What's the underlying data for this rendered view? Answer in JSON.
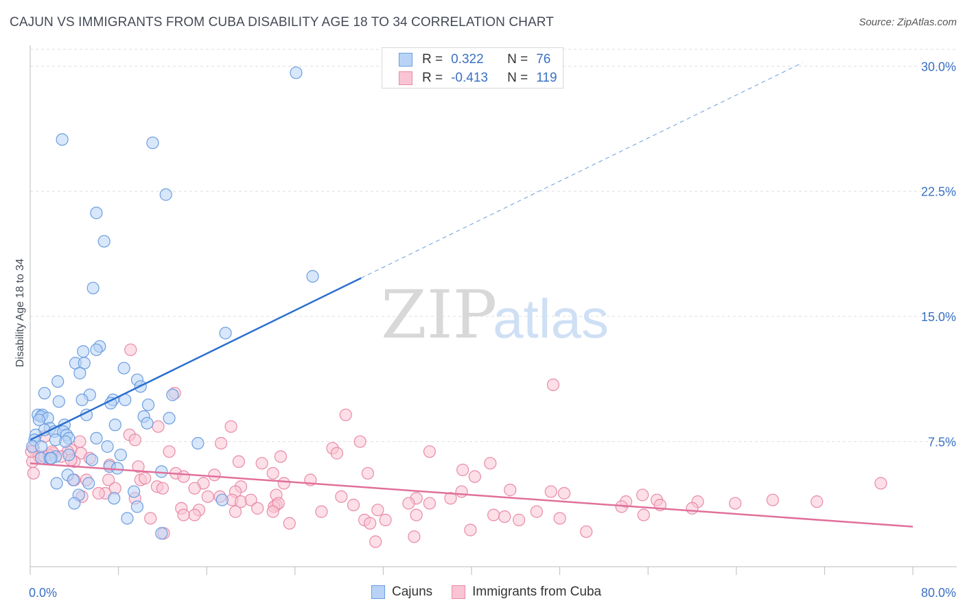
{
  "title": "CAJUN VS IMMIGRANTS FROM CUBA DISABILITY AGE 18 TO 34 CORRELATION CHART",
  "source": "Source: ZipAtlas.com",
  "watermark": {
    "zip": "ZIP",
    "atlas": "atlas"
  },
  "legend": {
    "rows": [
      {
        "r_label": "R =",
        "r_value": "0.322",
        "n_label": "N =",
        "n_value": "76"
      },
      {
        "r_label": "R =",
        "r_value": "-0.413",
        "n_label": "N =",
        "n_value": "119"
      }
    ]
  },
  "bottom_legend": [
    "Cajuns",
    "Immigrants from Cuba"
  ],
  "colors": {
    "blue_fill": "#b8d3f6",
    "blue_stroke": "#6b9de0",
    "blue_line": "#2a6fcf",
    "pink_fill": "#f9c4d4",
    "pink_stroke": "#e88aa8",
    "pink_line": "#e0709a",
    "tick_text": "#3a70c2",
    "grid": "#dddddd"
  },
  "chart_data": {
    "type": "scatter",
    "title": "CAJUN VS IMMIGRANTS FROM CUBA DISABILITY AGE 18 TO 34 CORRELATION CHART",
    "xlabel": "",
    "ylabel": "Disability Age 18 to 34",
    "xlim": [
      0,
      80
    ],
    "ylim": [
      0,
      31
    ],
    "x_tick_labels": [
      "0.0%",
      "80.0%"
    ],
    "y_ticks": [
      7.5,
      15.0,
      22.5,
      30.0
    ],
    "y_tick_labels": [
      "7.5%",
      "15.0%",
      "22.5%",
      "30.0%"
    ],
    "grid": "horizontal dashed",
    "series": [
      {
        "name": "Cajuns",
        "R": 0.322,
        "N": 76,
        "trend": {
          "x0": 0,
          "y0": 7.6,
          "x1": 30,
          "y1": 17.3,
          "dashed_to_x": 70,
          "dashed_to_y": 30.2
        },
        "points": [
          [
            24.1,
            29.6
          ],
          [
            2.9,
            25.6
          ],
          [
            11.1,
            25.4
          ],
          [
            12.3,
            22.3
          ],
          [
            6.0,
            21.2
          ],
          [
            6.7,
            19.5
          ],
          [
            25.6,
            17.4
          ],
          [
            5.7,
            16.7
          ],
          [
            17.7,
            14.0
          ],
          [
            6.3,
            13.2
          ],
          [
            4.8,
            12.9
          ],
          [
            6.0,
            13.0
          ],
          [
            4.1,
            12.2
          ],
          [
            4.9,
            12.2
          ],
          [
            8.5,
            11.9
          ],
          [
            4.5,
            11.6
          ],
          [
            9.7,
            11.2
          ],
          [
            2.5,
            11.1
          ],
          [
            10.0,
            10.8
          ],
          [
            1.3,
            10.4
          ],
          [
            12.9,
            10.3
          ],
          [
            5.4,
            10.3
          ],
          [
            7.5,
            10.0
          ],
          [
            8.6,
            10.0
          ],
          [
            4.7,
            10.0
          ],
          [
            2.6,
            9.9
          ],
          [
            7.3,
            9.8
          ],
          [
            10.7,
            9.7
          ],
          [
            0.7,
            9.1
          ],
          [
            1.1,
            9.1
          ],
          [
            1.0,
            9.0
          ],
          [
            5.1,
            9.1
          ],
          [
            10.3,
            9.0
          ],
          [
            12.6,
            8.9
          ],
          [
            1.6,
            8.9
          ],
          [
            0.8,
            8.8
          ],
          [
            10.6,
            8.6
          ],
          [
            3.1,
            8.5
          ],
          [
            7.7,
            8.5
          ],
          [
            1.8,
            8.3
          ],
          [
            1.3,
            8.2
          ],
          [
            2.2,
            8.1
          ],
          [
            3.0,
            8.1
          ],
          [
            3.3,
            7.9
          ],
          [
            0.5,
            7.9
          ],
          [
            0.4,
            7.6
          ],
          [
            3.5,
            7.7
          ],
          [
            2.3,
            7.6
          ],
          [
            3.2,
            7.5
          ],
          [
            15.2,
            7.4
          ],
          [
            7.0,
            7.2
          ],
          [
            0.2,
            7.2
          ],
          [
            1.0,
            7.2
          ],
          [
            8.2,
            6.7
          ],
          [
            3.5,
            6.7
          ],
          [
            2.3,
            6.6
          ],
          [
            1.0,
            6.5
          ],
          [
            1.8,
            6.5
          ],
          [
            5.6,
            6.4
          ],
          [
            7.2,
            6.0
          ],
          [
            7.9,
            5.9
          ],
          [
            11.9,
            5.7
          ],
          [
            3.4,
            5.5
          ],
          [
            3.9,
            5.2
          ],
          [
            2.4,
            5.0
          ],
          [
            5.3,
            5.0
          ],
          [
            9.4,
            4.5
          ],
          [
            4.4,
            4.3
          ],
          [
            7.6,
            4.1
          ],
          [
            17.4,
            4.0
          ],
          [
            4.0,
            3.8
          ],
          [
            9.7,
            3.6
          ],
          [
            8.8,
            2.9
          ],
          [
            11.9,
            2.0
          ],
          [
            6.0,
            7.7
          ],
          [
            1.9,
            6.5
          ]
        ]
      },
      {
        "name": "Immigrants from Cuba",
        "R": -0.413,
        "N": 119,
        "trend": {
          "x0": 0,
          "y0": 6.2,
          "x1": 80,
          "y1": 2.4
        },
        "points": [
          [
            9.1,
            13.0
          ],
          [
            47.4,
            10.9
          ],
          [
            13.1,
            10.4
          ],
          [
            28.6,
            9.1
          ],
          [
            11.6,
            8.4
          ],
          [
            18.2,
            8.4
          ],
          [
            9.0,
            7.9
          ],
          [
            1.3,
            7.8
          ],
          [
            9.5,
            7.6
          ],
          [
            4.5,
            7.5
          ],
          [
            17.3,
            7.4
          ],
          [
            29.9,
            7.5
          ],
          [
            27.4,
            7.1
          ],
          [
            0.3,
            7.1
          ],
          [
            3.7,
            7.0
          ],
          [
            3.4,
            6.9
          ],
          [
            36.2,
            6.9
          ],
          [
            12.6,
            6.9
          ],
          [
            2.1,
            6.8
          ],
          [
            4.6,
            6.8
          ],
          [
            27.8,
            6.8
          ],
          [
            0.8,
            6.6
          ],
          [
            1.3,
            6.6
          ],
          [
            22.7,
            6.6
          ],
          [
            2.8,
            6.6
          ],
          [
            0.2,
            6.3
          ],
          [
            18.9,
            6.3
          ],
          [
            21.0,
            6.2
          ],
          [
            41.7,
            6.2
          ],
          [
            4.0,
            6.3
          ],
          [
            9.8,
            6.0
          ],
          [
            3.7,
            6.4
          ],
          [
            39.2,
            5.8
          ],
          [
            0.3,
            5.6
          ],
          [
            5.4,
            6.5
          ],
          [
            22.0,
            5.6
          ],
          [
            30.6,
            5.6
          ],
          [
            13.2,
            5.6
          ],
          [
            16.7,
            5.5
          ],
          [
            13.9,
            5.4
          ],
          [
            40.3,
            5.4
          ],
          [
            25.4,
            5.2
          ],
          [
            10.0,
            5.2
          ],
          [
            7.1,
            5.2
          ],
          [
            10.4,
            5.3
          ],
          [
            4.0,
            5.2
          ],
          [
            5.1,
            5.2
          ],
          [
            15.7,
            5.0
          ],
          [
            23.0,
            5.0
          ],
          [
            77.1,
            5.0
          ],
          [
            19.1,
            4.8
          ],
          [
            11.5,
            4.8
          ],
          [
            14.9,
            4.7
          ],
          [
            12.0,
            4.7
          ],
          [
            7.7,
            4.7
          ],
          [
            43.5,
            4.6
          ],
          [
            18.6,
            4.5
          ],
          [
            47.2,
            4.5
          ],
          [
            6.8,
            4.4
          ],
          [
            39.1,
            4.5
          ],
          [
            48.4,
            4.4
          ],
          [
            55.5,
            4.3
          ],
          [
            28.2,
            4.2
          ],
          [
            22.3,
            4.3
          ],
          [
            17.2,
            4.2
          ],
          [
            18.3,
            4.0
          ],
          [
            16.1,
            4.2
          ],
          [
            19.1,
            3.9
          ],
          [
            6.2,
            4.4
          ],
          [
            4.7,
            4.2
          ],
          [
            9.5,
            4.1
          ],
          [
            38.1,
            4.1
          ],
          [
            20.0,
            4.0
          ],
          [
            35.0,
            4.1
          ],
          [
            54.0,
            3.9
          ],
          [
            56.8,
            4.0
          ],
          [
            60.5,
            3.9
          ],
          [
            63.9,
            3.8
          ],
          [
            67.3,
            4.0
          ],
          [
            71.3,
            3.9
          ],
          [
            34.3,
            3.8
          ],
          [
            22.3,
            3.7
          ],
          [
            29.3,
            3.7
          ],
          [
            22.1,
            3.6
          ],
          [
            57.1,
            3.7
          ],
          [
            60.0,
            3.5
          ],
          [
            53.6,
            3.6
          ],
          [
            22.5,
            3.8
          ],
          [
            36.2,
            3.8
          ],
          [
            13.7,
            3.5
          ],
          [
            15.3,
            3.4
          ],
          [
            20.6,
            3.5
          ],
          [
            31.5,
            3.4
          ],
          [
            22.0,
            3.3
          ],
          [
            45.9,
            3.3
          ],
          [
            18.6,
            3.3
          ],
          [
            26.4,
            3.3
          ],
          [
            14.9,
            3.1
          ],
          [
            13.9,
            3.1
          ],
          [
            42.0,
            3.1
          ],
          [
            55.6,
            3.1
          ],
          [
            43.0,
            3.0
          ],
          [
            35.0,
            3.1
          ],
          [
            48.0,
            2.9
          ],
          [
            10.9,
            2.9
          ],
          [
            32.2,
            2.8
          ],
          [
            44.3,
            2.8
          ],
          [
            30.3,
            2.8
          ],
          [
            23.5,
            2.6
          ],
          [
            30.8,
            2.6
          ],
          [
            39.9,
            2.2
          ],
          [
            50.4,
            2.1
          ],
          [
            12.1,
            2.0
          ],
          [
            34.8,
            1.8
          ],
          [
            31.3,
            1.5
          ],
          [
            7.2,
            6.1
          ],
          [
            0.1,
            6.9
          ],
          [
            1.7,
            6.7
          ],
          [
            2.0,
            6.9
          ]
        ]
      }
    ]
  }
}
